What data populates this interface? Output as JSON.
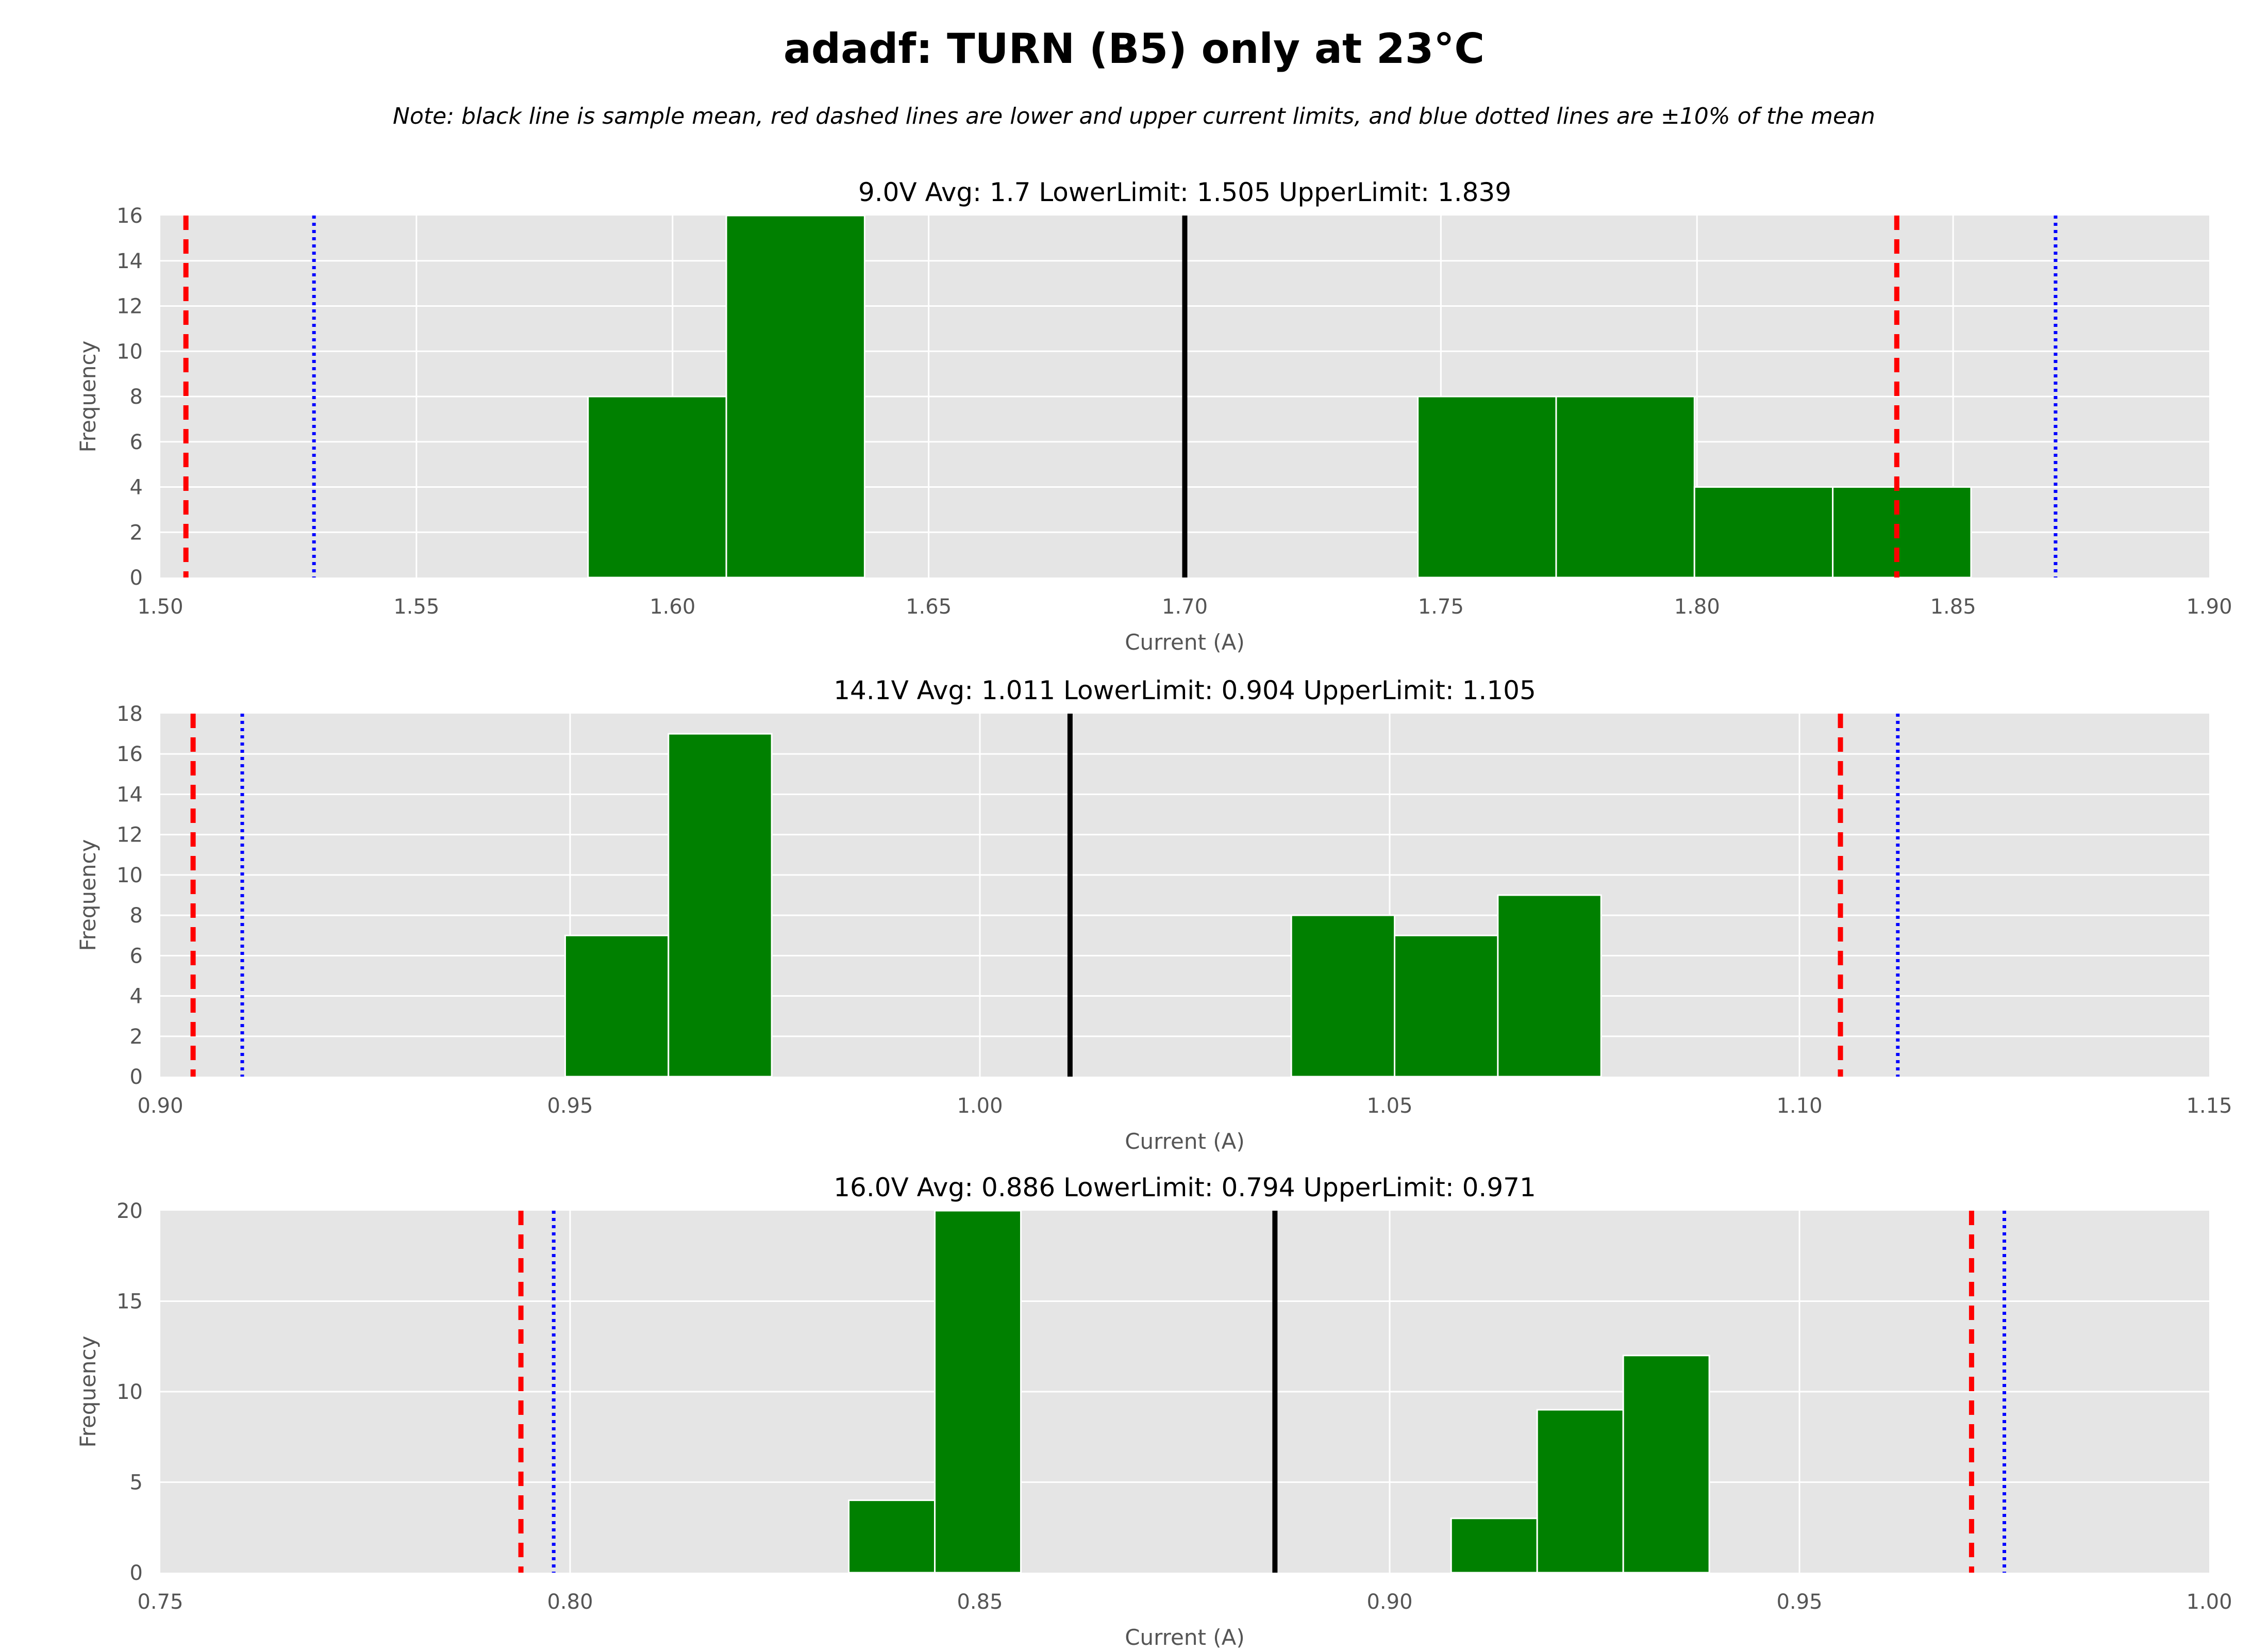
{
  "figure": {
    "title": "adadf: TURN (B5) only at 23°C",
    "note": "Note: black line is sample mean, red dashed lines are lower and upper current limits, and blue dotted lines are ±10% of the mean",
    "colors": {
      "bar": "#008000",
      "mean_line": "#000000",
      "limit_line": "#ff0000",
      "pct10_line": "#0000ff",
      "axes_bg": "#e5e5e5",
      "grid": "#ffffff"
    }
  },
  "chart_data": [
    {
      "type": "bar",
      "title": "9.0V   Avg: 1.7   LowerLimit: 1.505   UpperLimit: 1.839",
      "xlabel": "Current (A)",
      "ylabel": "Frequency",
      "xlim": [
        1.5,
        1.9
      ],
      "ylim": [
        0,
        16
      ],
      "xticks": [
        "1.50",
        "1.55",
        "1.60",
        "1.65",
        "1.70",
        "1.75",
        "1.80",
        "1.85",
        "1.90"
      ],
      "yticks": [
        "0",
        "2",
        "4",
        "6",
        "8",
        "10",
        "12",
        "14",
        "16"
      ],
      "grid": true,
      "bins": [
        {
          "x0": 1.5835,
          "x1": 1.6105,
          "count": 8
        },
        {
          "x0": 1.6105,
          "x1": 1.6375,
          "count": 16
        },
        {
          "x0": 1.7455,
          "x1": 1.7725,
          "count": 8
        },
        {
          "x0": 1.7725,
          "x1": 1.7995,
          "count": 8
        },
        {
          "x0": 1.7995,
          "x1": 1.8265,
          "count": 4
        },
        {
          "x0": 1.8265,
          "x1": 1.8535,
          "count": 4
        }
      ],
      "mean": 1.7,
      "lower_limit": 1.505,
      "upper_limit": 1.839,
      "minus_10pct": 1.53,
      "plus_10pct": 1.87
    },
    {
      "type": "bar",
      "title": "14.1V   Avg: 1.011   LowerLimit: 0.904   UpperLimit: 1.105",
      "xlabel": "Current (A)",
      "ylabel": "Frequency",
      "xlim": [
        0.9,
        1.15
      ],
      "ylim": [
        0,
        18
      ],
      "xticks": [
        "0.90",
        "0.95",
        "1.00",
        "1.05",
        "1.10",
        "1.15"
      ],
      "yticks": [
        "0",
        "2",
        "4",
        "6",
        "8",
        "10",
        "12",
        "14",
        "16",
        "18"
      ],
      "grid": true,
      "bins": [
        {
          "x0": 0.9494,
          "x1": 0.962,
          "count": 7
        },
        {
          "x0": 0.962,
          "x1": 0.9746,
          "count": 17
        },
        {
          "x0": 1.038,
          "x1": 1.0506,
          "count": 8
        },
        {
          "x0": 1.0506,
          "x1": 1.0632,
          "count": 7
        },
        {
          "x0": 1.0632,
          "x1": 1.0758,
          "count": 9
        }
      ],
      "mean": 1.011,
      "lower_limit": 0.904,
      "upper_limit": 1.105,
      "minus_10pct": 0.91,
      "plus_10pct": 1.112
    },
    {
      "type": "bar",
      "title": "16.0V   Avg: 0.886   LowerLimit: 0.794   UpperLimit: 0.971",
      "xlabel": "Current (A)",
      "ylabel": "Frequency",
      "xlim": [
        0.75,
        1.0
      ],
      "ylim": [
        0,
        20
      ],
      "xticks": [
        "0.75",
        "0.80",
        "0.85",
        "0.90",
        "0.95",
        "1.00"
      ],
      "yticks": [
        "0",
        "5",
        "10",
        "15",
        "20"
      ],
      "grid": true,
      "bins": [
        {
          "x0": 0.834,
          "x1": 0.8445,
          "count": 4
        },
        {
          "x0": 0.8445,
          "x1": 0.855,
          "count": 20
        },
        {
          "x0": 0.9075,
          "x1": 0.918,
          "count": 3
        },
        {
          "x0": 0.918,
          "x1": 0.9285,
          "count": 9
        },
        {
          "x0": 0.9285,
          "x1": 0.939,
          "count": 12
        }
      ],
      "mean": 0.886,
      "lower_limit": 0.794,
      "upper_limit": 0.971,
      "minus_10pct": 0.798,
      "plus_10pct": 0.975
    }
  ]
}
